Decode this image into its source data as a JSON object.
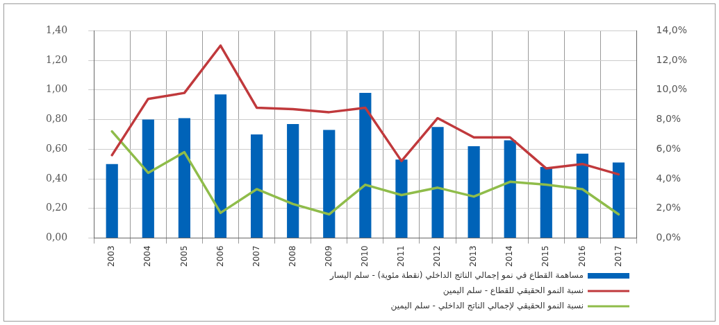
{
  "chart_data": {
    "type": "bar",
    "categories": [
      "2003",
      "2004",
      "2005",
      "2006",
      "2007",
      "2008",
      "2009",
      "2010",
      "2011",
      "2012",
      "2013",
      "2014",
      "2015",
      "2016",
      "2017"
    ],
    "series": [
      {
        "name": "مساهمة القطاع في نمو إجمالي الناتج الداخلي (نقطة مئوية) - سلم اليسار",
        "color": "#0063b8",
        "values": [
          0.5,
          0.8,
          0.81,
          0.97,
          0.7,
          0.77,
          0.73,
          0.98,
          0.53,
          0.75,
          0.62,
          0.66,
          0.48,
          0.57,
          0.51
        ]
      },
      {
        "name": "نسبة النمو الحقيقي للقطاع - سلم اليمين",
        "type": "line",
        "axis": "y2",
        "color": "#c0393c",
        "values": [
          5.6,
          9.4,
          9.8,
          13.0,
          8.8,
          8.7,
          8.5,
          8.8,
          5.2,
          8.1,
          6.8,
          6.8,
          4.7,
          5.0,
          4.3
        ]
      },
      {
        "name": "نسبة النمو الحقيقي لإجمالي الناتج الداخلي - سلم اليمين",
        "type": "line",
        "axis": "y2",
        "color": "#8fbc4a",
        "values": [
          7.2,
          4.4,
          5.8,
          1.7,
          3.3,
          2.3,
          1.6,
          3.6,
          2.9,
          3.4,
          2.8,
          3.8,
          3.6,
          3.3,
          1.6
        ]
      }
    ],
    "ylim": [
      0,
      1.4
    ],
    "yticks": [
      {
        "value": 0,
        "label": "0,00"
      },
      {
        "value": 0.2,
        "label": "0,20"
      },
      {
        "value": 0.4,
        "label": "0,40"
      },
      {
        "value": 0.6,
        "label": "0,60"
      },
      {
        "value": 0.8,
        "label": "0,80"
      },
      {
        "value": 1.0,
        "label": "1,00"
      },
      {
        "value": 1.2,
        "label": "1,20"
      },
      {
        "value": 1.4,
        "label": "1,40"
      }
    ],
    "y2lim": [
      0,
      14
    ],
    "y2ticks": [
      {
        "value": 0,
        "label": "0,0%"
      },
      {
        "value": 2,
        "label": "2,0%"
      },
      {
        "value": 4,
        "label": "4,0%"
      },
      {
        "value": 6,
        "label": "6,0%"
      },
      {
        "value": 8,
        "label": "8,0%"
      },
      {
        "value": 10,
        "label": "10,0%"
      },
      {
        "value": 12,
        "label": "12,0%"
      },
      {
        "value": 14,
        "label": "14,0%"
      }
    ],
    "grid": true,
    "legend": "bottom",
    "marker": "none",
    "line_style": "solid"
  }
}
